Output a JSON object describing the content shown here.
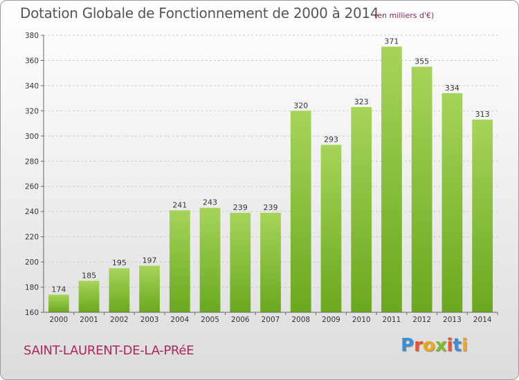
{
  "header": {
    "title": "Dotation Globale de Fonctionnement de 2000 à 2014",
    "unit": "(en milliers d'€)"
  },
  "footer": {
    "commune": "SAINT-LAURENT-DE-LA-PRéE",
    "logo_letters": [
      "P",
      "r",
      "o",
      "x",
      "i",
      "t",
      "i"
    ],
    "logo_colors": [
      "#3a8fd9",
      "#e8542b",
      "#f2a71b",
      "#7cbf2a",
      "#e8542b",
      "#3a8fd9",
      "#f2a71b"
    ]
  },
  "colors": {
    "bar_top": "#a6d45a",
    "bar_bottom": "#6aa81e",
    "grid": "#c8c8c8"
  },
  "chart_data": {
    "type": "bar",
    "categories": [
      "2000",
      "2001",
      "2002",
      "2003",
      "2004",
      "2005",
      "2006",
      "2007",
      "2008",
      "2009",
      "2010",
      "2011",
      "2012",
      "2013",
      "2014"
    ],
    "values": [
      174,
      185,
      195,
      197,
      241,
      243,
      239,
      239,
      320,
      293,
      323,
      371,
      355,
      334,
      313
    ],
    "title": "Dotation Globale de Fonctionnement de 2000 à 2014",
    "ylim": [
      160,
      380
    ],
    "yticks": [
      160,
      180,
      200,
      220,
      240,
      260,
      280,
      300,
      320,
      340,
      360,
      380
    ],
    "grid": true
  }
}
